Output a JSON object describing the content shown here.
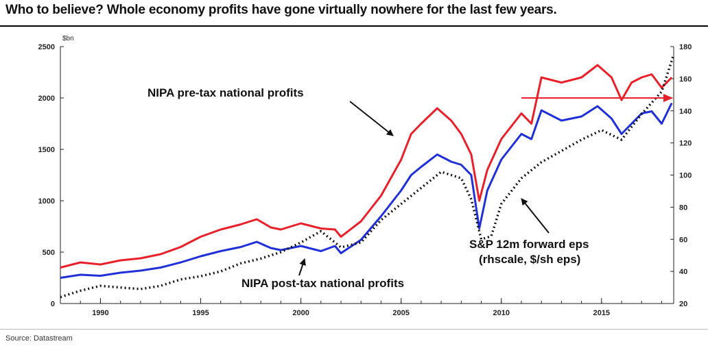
{
  "title": "Who to believe? Whole economy profits have gone virtually nowhere for the last few years.",
  "source": "Source: Datastream",
  "chart_data": {
    "type": "line",
    "title": "Who to believe? Whole economy profits have gone virtually nowhere for the last few years.",
    "left_axis": {
      "unit": "$bn",
      "range": [
        0,
        2500
      ],
      "ticks": [
        0,
        500,
        1000,
        1500,
        2000,
        2500
      ]
    },
    "right_axis": {
      "range": [
        20,
        180
      ],
      "ticks": [
        20,
        40,
        60,
        80,
        100,
        120,
        140,
        160,
        180
      ]
    },
    "x_axis": {
      "range": [
        1988,
        2018.6
      ],
      "ticks": [
        1990,
        1995,
        2000,
        2005,
        2010,
        2015
      ]
    },
    "grid": false,
    "series": [
      {
        "name": "NIPA pre-tax national profits",
        "axis": "left",
        "color": "#e8202a",
        "style": "solid",
        "points": [
          [
            1988,
            350
          ],
          [
            1989,
            400
          ],
          [
            1990,
            380
          ],
          [
            1991,
            420
          ],
          [
            1992,
            440
          ],
          [
            1993,
            480
          ],
          [
            1994,
            550
          ],
          [
            1995,
            650
          ],
          [
            1996,
            720
          ],
          [
            1997,
            770
          ],
          [
            1997.8,
            820
          ],
          [
            1998.5,
            740
          ],
          [
            1999,
            720
          ],
          [
            2000,
            780
          ],
          [
            2001,
            730
          ],
          [
            2001.7,
            720
          ],
          [
            2002,
            650
          ],
          [
            2003,
            800
          ],
          [
            2004,
            1050
          ],
          [
            2005,
            1400
          ],
          [
            2005.5,
            1650
          ],
          [
            2006,
            1750
          ],
          [
            2006.8,
            1900
          ],
          [
            2007.5,
            1780
          ],
          [
            2008,
            1650
          ],
          [
            2008.5,
            1450
          ],
          [
            2008.9,
            1000
          ],
          [
            2009.3,
            1300
          ],
          [
            2010,
            1600
          ],
          [
            2011,
            1850
          ],
          [
            2011.5,
            1750
          ],
          [
            2012,
            2200
          ],
          [
            2013,
            2150
          ],
          [
            2014,
            2200
          ],
          [
            2014.8,
            2320
          ],
          [
            2015.5,
            2200
          ],
          [
            2016,
            1980
          ],
          [
            2016.5,
            2150
          ],
          [
            2017,
            2200
          ],
          [
            2017.5,
            2230
          ],
          [
            2018,
            2100
          ],
          [
            2018.5,
            2200
          ]
        ]
      },
      {
        "name": "NIPA post-tax national profits",
        "axis": "left",
        "color": "#2030d8",
        "style": "solid",
        "points": [
          [
            1988,
            250
          ],
          [
            1989,
            280
          ],
          [
            1990,
            270
          ],
          [
            1991,
            300
          ],
          [
            1992,
            320
          ],
          [
            1993,
            350
          ],
          [
            1994,
            400
          ],
          [
            1995,
            460
          ],
          [
            1996,
            510
          ],
          [
            1997,
            550
          ],
          [
            1997.8,
            600
          ],
          [
            1998.5,
            540
          ],
          [
            1999,
            520
          ],
          [
            2000,
            560
          ],
          [
            2001,
            510
          ],
          [
            2001.7,
            560
          ],
          [
            2002,
            490
          ],
          [
            2003,
            620
          ],
          [
            2004,
            850
          ],
          [
            2005,
            1100
          ],
          [
            2005.5,
            1250
          ],
          [
            2006,
            1330
          ],
          [
            2006.8,
            1450
          ],
          [
            2007.5,
            1380
          ],
          [
            2008,
            1350
          ],
          [
            2008.5,
            1250
          ],
          [
            2008.9,
            730
          ],
          [
            2009.3,
            1100
          ],
          [
            2010,
            1400
          ],
          [
            2011,
            1650
          ],
          [
            2011.5,
            1600
          ],
          [
            2012,
            1880
          ],
          [
            2013,
            1780
          ],
          [
            2014,
            1820
          ],
          [
            2014.8,
            1920
          ],
          [
            2015.5,
            1800
          ],
          [
            2016,
            1650
          ],
          [
            2016.5,
            1750
          ],
          [
            2017,
            1850
          ],
          [
            2017.5,
            1870
          ],
          [
            2018,
            1750
          ],
          [
            2018.5,
            1950
          ]
        ]
      },
      {
        "name": "S&P 12m forward eps (rhscale, $/sh eps)",
        "axis": "right",
        "color": "#111111",
        "style": "dotted",
        "points": [
          [
            1988,
            24
          ],
          [
            1989,
            28
          ],
          [
            1990,
            31
          ],
          [
            1991,
            30
          ],
          [
            1992,
            29
          ],
          [
            1993,
            31
          ],
          [
            1994,
            35
          ],
          [
            1995,
            37
          ],
          [
            1996,
            40
          ],
          [
            1997,
            45
          ],
          [
            1998,
            48
          ],
          [
            1999,
            52
          ],
          [
            2000,
            58
          ],
          [
            2001,
            65
          ],
          [
            2002,
            55
          ],
          [
            2003,
            58
          ],
          [
            2004,
            72
          ],
          [
            2005,
            82
          ],
          [
            2006,
            92
          ],
          [
            2007,
            102
          ],
          [
            2008,
            98
          ],
          [
            2008.5,
            85
          ],
          [
            2009,
            60
          ],
          [
            2009.5,
            62
          ],
          [
            2010,
            82
          ],
          [
            2011,
            98
          ],
          [
            2012,
            108
          ],
          [
            2013,
            115
          ],
          [
            2014,
            122
          ],
          [
            2015,
            128
          ],
          [
            2015.5,
            125
          ],
          [
            2016,
            122
          ],
          [
            2017,
            138
          ],
          [
            2018,
            152
          ],
          [
            2018.6,
            175
          ]
        ]
      }
    ],
    "annotations": [
      {
        "text": "NIPA pre-tax national profits",
        "target": [
          2005.2,
          1600
        ]
      },
      {
        "text": "NIPA post-tax national profits",
        "target": [
          2000.5,
          530
        ]
      },
      {
        "text": "S&P 12m forward eps",
        "target": [
          2010.5,
          100
        ]
      },
      {
        "text": "(rhscale, $/sh eps)"
      }
    ],
    "reference_arrow": {
      "color": "#e8202a",
      "value": 2000,
      "from_x": 2011,
      "to_x": 2018.6
    }
  }
}
